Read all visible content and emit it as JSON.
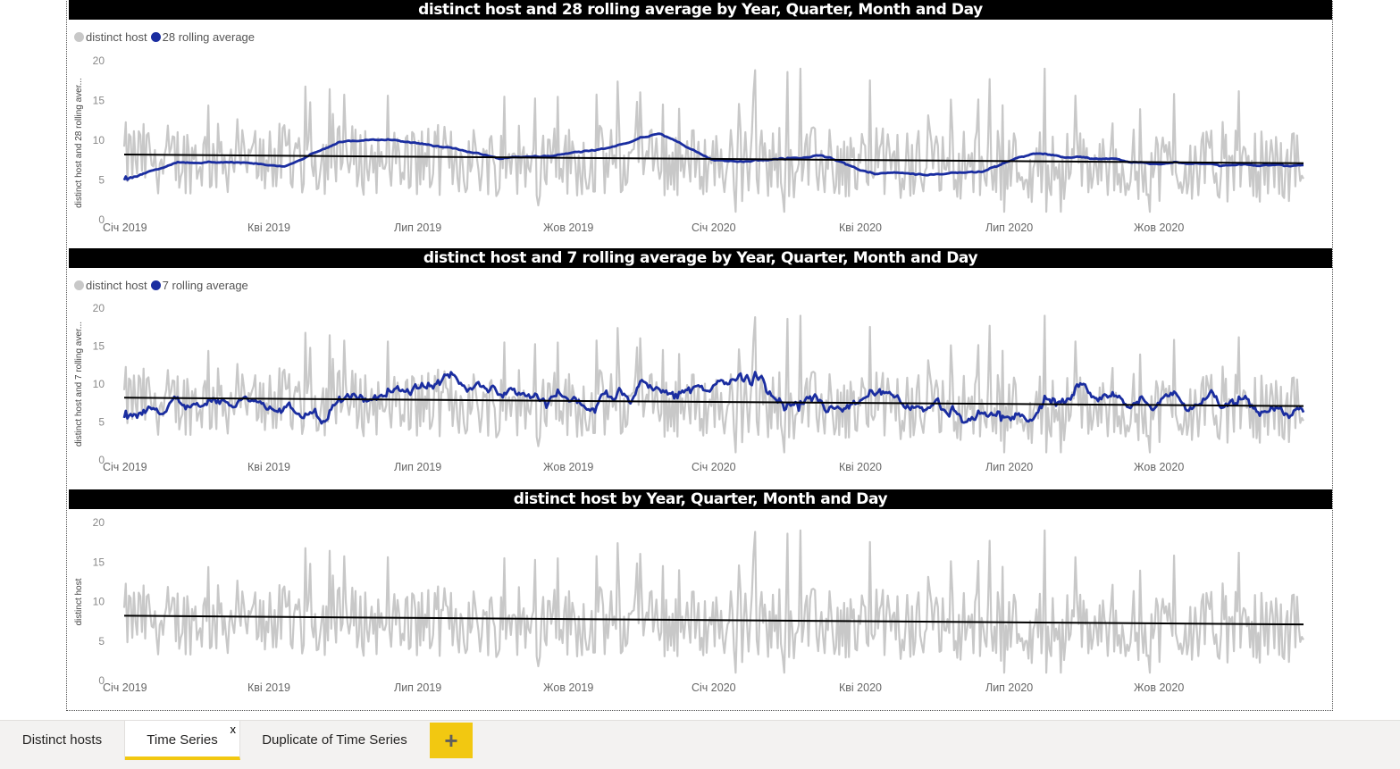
{
  "app": {
    "pages": [
      {
        "label": "Distinct hosts"
      },
      {
        "label": "Time Series"
      },
      {
        "label": "Duplicate of Time Series"
      }
    ],
    "close_glyph": "x",
    "add_page_glyph": "+"
  },
  "visuals": [
    {
      "title": "distinct host and 28 rolling average by Year, Quarter, Month and Day",
      "legend": [
        "distinct host",
        "28 rolling average"
      ],
      "ylabel": "distinct host and 28 rolling aver..."
    },
    {
      "title": "distinct host and 7 rolling average by Year, Quarter, Month and Day",
      "legend": [
        "distinct host",
        "7 rolling average"
      ],
      "ylabel": "distinct host and 7 rolling aver..."
    },
    {
      "title": "distinct host by Year, Quarter, Month and Day",
      "legend": [],
      "ylabel": "distinct host"
    }
  ],
  "chart_data": [
    {
      "type": "line",
      "title": "distinct host and 28 rolling average by Year, Quarter, Month and Day",
      "ylabel": "distinct host and 28 rolling aver...",
      "ylim": [
        0,
        20
      ],
      "yticks": [
        0,
        5,
        10,
        15,
        20
      ],
      "x_ticks": [
        "Січ 2019",
        "Кві 2019",
        "Лип 2019",
        "Жов 2019",
        "Січ 2020",
        "Кві 2020",
        "Лип 2020",
        "Жов 2020"
      ],
      "legend_position": "top-left",
      "series": [
        {
          "name": "distinct host",
          "color": "#c8c8c8",
          "style": "daily noisy values ranging ~1 to ~19"
        },
        {
          "name": "28 rolling average",
          "color": "#1a2da0",
          "x": [
            "Січ 2019",
            "Кві 2019",
            "Лип 2019",
            "Жов 2019",
            "Січ 2020",
            "Кві 2020",
            "Лип 2020",
            "Жов 2020"
          ],
          "values": [
            4.5,
            7,
            10.2,
            7.8,
            7.7,
            8,
            8.5,
            7.4
          ]
        }
      ],
      "trend_line": {
        "color": "#000000",
        "start": 8.2,
        "end": 7.1
      }
    },
    {
      "type": "line",
      "title": "distinct host and 7 rolling average by Year, Quarter, Month and Day",
      "ylabel": "distinct host and 7 rolling aver...",
      "ylim": [
        0,
        20
      ],
      "yticks": [
        0,
        5,
        10,
        15,
        20
      ],
      "x_ticks": [
        "Січ 2019",
        "Кві 2019",
        "Лип 2019",
        "Жов 2019",
        "Січ 2020",
        "Кві 2020",
        "Лип 2020",
        "Жов 2020"
      ],
      "legend_position": "top-left",
      "series": [
        {
          "name": "distinct host",
          "color": "#c8c8c8"
        },
        {
          "name": "7 rolling average",
          "color": "#1a2da0",
          "x": [
            "Січ 2019",
            "Кві 2019",
            "Лип 2019",
            "Жов 2019",
            "Січ 2020",
            "Кві 2020",
            "Лип 2020",
            "Жов 2020"
          ],
          "values": [
            4,
            4.5,
            10,
            8,
            8,
            6.5,
            9,
            8
          ]
        }
      ],
      "trend_line": {
        "color": "#000000",
        "start": 8.2,
        "end": 7.1
      }
    },
    {
      "type": "line",
      "title": "distinct host by Year, Quarter, Month and Day",
      "ylabel": "distinct host",
      "ylim": [
        0,
        20
      ],
      "yticks": [
        0,
        5,
        10,
        15,
        20
      ],
      "x_ticks": [
        "Січ 2019",
        "Кві 2019",
        "Лип 2019",
        "Жов 2019",
        "Січ 2020",
        "Кві 2020",
        "Лип 2020",
        "Жов 2020"
      ],
      "series": [
        {
          "name": "distinct host",
          "color": "#c8c8c8"
        }
      ],
      "trend_line": {
        "color": "#000000",
        "start": 8.2,
        "end": 7.1
      }
    }
  ]
}
